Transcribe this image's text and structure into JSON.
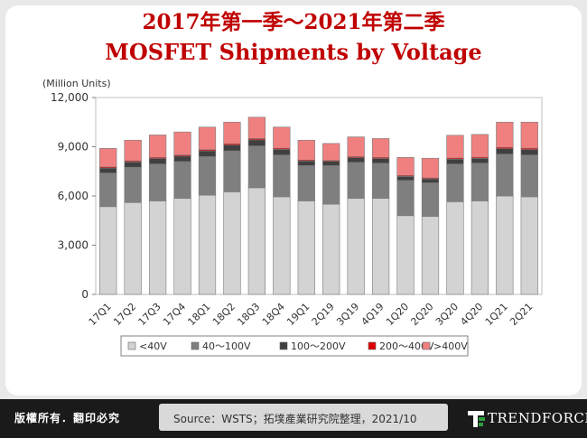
{
  "title_line1": "2017年第一季～2021年第二季",
  "title_line2": "MOSFET Shipments by Voltage",
  "footer": {
    "copyright": "版權所有．翻印必究",
    "source": "Source：WSTS；拓墣產業研究院整理，2021/10",
    "brand": "TRENDFORCE",
    "brand_icon": "trendforce-logo-icon"
  },
  "colors": {
    "lt40": "#d3d3d3",
    "v40_100": "#7f7f7f",
    "v100_200": "#404040",
    "v200_400": "#e00000",
    "gt400": "#f08080",
    "title": "#c00000"
  },
  "chart_data": {
    "type": "bar",
    "stacked": true,
    "ylabel": "(Million Units)",
    "ylim": [
      0,
      12000
    ],
    "yticks": [
      0,
      3000,
      6000,
      9000,
      12000
    ],
    "ytick_labels": [
      "0",
      "3,000",
      "6,000",
      "9,000",
      "12,000"
    ],
    "grid": false,
    "legend_position": "bottom",
    "categories": [
      "17Q1",
      "17Q2",
      "17Q3",
      "17Q4",
      "18Q1",
      "18Q2",
      "18Q3",
      "18Q4",
      "19Q1",
      "2Q19",
      "3Q19",
      "4Q19",
      "1Q20",
      "2Q20",
      "3Q20",
      "4Q20",
      "1Q21",
      "2Q21"
    ],
    "series": [
      {
        "name": "<40V",
        "color_key": "lt40",
        "values": [
          5350,
          5600,
          5700,
          5850,
          6050,
          6250,
          6500,
          5950,
          5700,
          5500,
          5850,
          5850,
          4800,
          4750,
          5650,
          5700,
          6000,
          5950
        ]
      },
      {
        "name": "40～100V",
        "color_key": "v40_100",
        "values": [
          2050,
          2150,
          2250,
          2250,
          2350,
          2500,
          2550,
          2550,
          2150,
          2350,
          2200,
          2150,
          2150,
          2050,
          2300,
          2300,
          2550,
          2550
        ]
      },
      {
        "name": "100～200V",
        "color_key": "v100_200",
        "values": [
          300,
          320,
          330,
          330,
          350,
          350,
          370,
          340,
          280,
          260,
          280,
          280,
          240,
          240,
          290,
          290,
          330,
          330
        ]
      },
      {
        "name": "200～400V",
        "color_key": "v200_400",
        "values": [
          70,
          70,
          70,
          70,
          70,
          80,
          80,
          70,
          60,
          60,
          70,
          70,
          60,
          60,
          70,
          70,
          80,
          80
        ]
      },
      {
        "name": ">400V",
        "color_key": "gt400",
        "values": [
          1130,
          1260,
          1370,
          1400,
          1380,
          1320,
          1300,
          1290,
          1210,
          1030,
          1200,
          1150,
          1100,
          1200,
          1390,
          1390,
          1540,
          1590
        ]
      }
    ]
  }
}
